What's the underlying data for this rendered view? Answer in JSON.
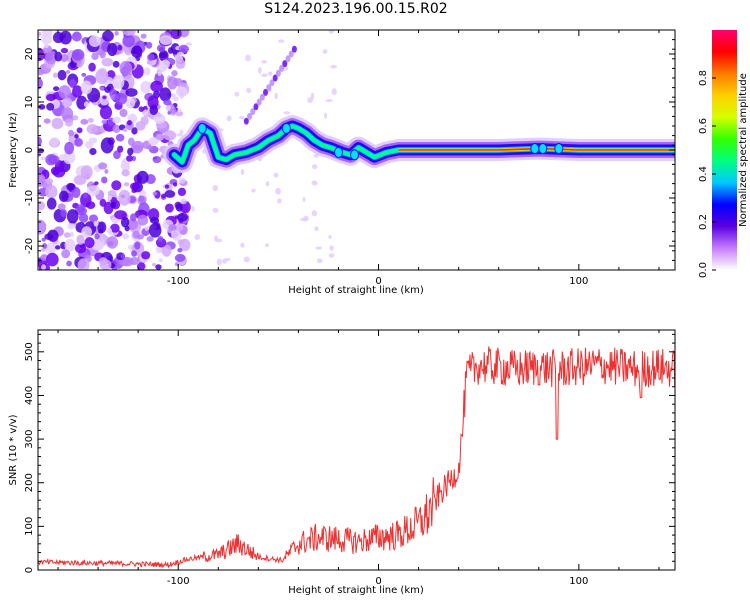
{
  "title": "S124.2023.196.00.15.R02",
  "chart_data": [
    {
      "type": "heatmap",
      "name": "spectrogram",
      "xlabel": "Height of straight line (km)",
      "ylabel": "Frequency (Hz)",
      "xlim": [
        -170,
        148
      ],
      "ylim": [
        -25,
        25
      ],
      "x_ticks": [
        -100,
        0,
        100
      ],
      "y_ticks": [
        -20,
        -10,
        0,
        10,
        20
      ],
      "grid": false,
      "noise_region_x": [
        -170,
        -100
      ],
      "ridge": [
        {
          "x": -102,
          "y": -1.0
        },
        {
          "x": -98,
          "y": -2.5
        },
        {
          "x": -95,
          "y": 1.0
        },
        {
          "x": -92,
          "y": 2.0
        },
        {
          "x": -88,
          "y": 4.5
        },
        {
          "x": -84,
          "y": 3.5
        },
        {
          "x": -80,
          "y": -1.5
        },
        {
          "x": -76,
          "y": -2.0
        },
        {
          "x": -72,
          "y": -1.0
        },
        {
          "x": -66,
          "y": -0.5
        },
        {
          "x": -60,
          "y": 0.5
        },
        {
          "x": -55,
          "y": 2.0
        },
        {
          "x": -50,
          "y": 3.0
        },
        {
          "x": -46,
          "y": 4.5
        },
        {
          "x": -43,
          "y": 5.0
        },
        {
          "x": -40,
          "y": 4.5
        },
        {
          "x": -36,
          "y": 3.5
        },
        {
          "x": -32,
          "y": 2.0
        },
        {
          "x": -28,
          "y": 1.0
        },
        {
          "x": -24,
          "y": 0.5
        },
        {
          "x": -18,
          "y": -0.5
        },
        {
          "x": -14,
          "y": -1.0
        },
        {
          "x": -10,
          "y": 0.5
        },
        {
          "x": -6,
          "y": -0.5
        },
        {
          "x": -2,
          "y": -1.5
        },
        {
          "x": 4,
          "y": -0.5
        },
        {
          "x": 10,
          "y": 0.0
        },
        {
          "x": 30,
          "y": 0.0
        },
        {
          "x": 60,
          "y": 0.0
        },
        {
          "x": 80,
          "y": 0.3
        },
        {
          "x": 100,
          "y": 0.0
        },
        {
          "x": 148,
          "y": 0.0
        }
      ],
      "colorbar": {
        "label": "Normalized spectral amplitude",
        "range": [
          0,
          1
        ],
        "ticks": [
          "0.0",
          "0.2",
          "0.4",
          "0.6",
          "0.8"
        ],
        "tick_values": [
          0,
          0.2,
          0.4,
          0.6,
          0.8
        ],
        "colors": [
          "#ffffff",
          "#c77dff",
          "#5a00e0",
          "#0000ff",
          "#00c8ff",
          "#00ff7f",
          "#32ff00",
          "#d4ff00",
          "#ffd000",
          "#ff7a00",
          "#ff0000",
          "#ff0070"
        ]
      }
    },
    {
      "type": "line",
      "name": "snr",
      "xlabel": "Height of straight line (km)",
      "ylabel": "SNR (10 * v/v)",
      "xlim": [
        -170,
        148
      ],
      "ylim": [
        0,
        550
      ],
      "x_ticks": [
        -100,
        0,
        100
      ],
      "y_ticks": [
        0,
        100,
        200,
        300,
        400,
        500
      ],
      "grid": false,
      "color": "#ee3030",
      "trend": {
        "x": [
          -170,
          -130,
          -105,
          -95,
          -80,
          -70,
          -60,
          -48,
          -40,
          -30,
          -20,
          -10,
          0,
          10,
          20,
          25,
          30,
          35,
          40,
          42,
          44,
          50,
          60,
          70,
          80,
          90,
          100,
          110,
          120,
          130,
          140,
          148
        ],
        "y": [
          18,
          15,
          12,
          25,
          35,
          60,
          30,
          22,
          60,
          75,
          70,
          65,
          75,
          80,
          105,
          130,
          170,
          200,
          230,
          330,
          445,
          470,
          465,
          460,
          465,
          460,
          465,
          470,
          465,
          460,
          465,
          460
        ]
      }
    }
  ]
}
